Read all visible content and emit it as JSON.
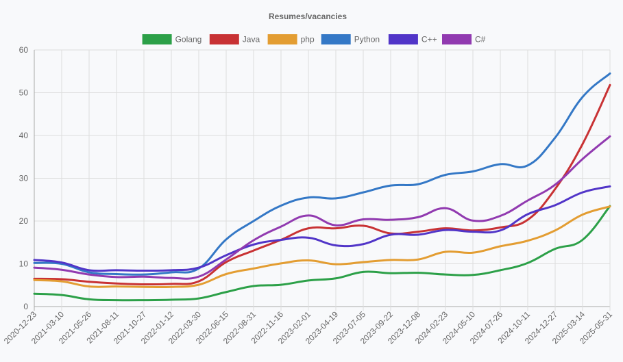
{
  "chart_data": {
    "type": "line",
    "title": "Resumes/vacancies",
    "xlabel": "",
    "ylabel": "",
    "ylim": [
      0,
      60
    ],
    "yticks": [
      "0",
      "10",
      "20",
      "30",
      "40",
      "50",
      "60"
    ],
    "grid": true,
    "legend_position": "top",
    "x": [
      "2020-12-23",
      "2021-03-10",
      "2021-05-26",
      "2021-08-11",
      "2021-10-27",
      "2022-01-12",
      "2022-03-30",
      "2022-06-15",
      "2022-08-31",
      "2022-11-16",
      "2023-02-01",
      "2023-04-19",
      "2023-07-05",
      "2023-09-22",
      "2023-12-08",
      "2024-02-23",
      "2024-05-10",
      "2024-07-26",
      "2024-10-11",
      "2024-12-27",
      "2025-03-14",
      "2025-05-31"
    ],
    "series": [
      {
        "name": "Golang",
        "color": "#2ca048",
        "values": [
          3.0,
          2.7,
          1.7,
          1.5,
          1.5,
          1.6,
          1.9,
          3.4,
          4.8,
          5.1,
          6.1,
          6.6,
          8.1,
          7.8,
          7.9,
          7.5,
          7.4,
          8.5,
          10.2,
          13.5,
          15.6,
          23.5
        ]
      },
      {
        "name": "Java",
        "color": "#c83234",
        "values": [
          6.5,
          6.4,
          5.8,
          5.4,
          5.2,
          5.3,
          5.9,
          10.4,
          13.1,
          15.6,
          18.3,
          18.3,
          18.9,
          17.1,
          17.5,
          18.3,
          17.8,
          18.5,
          20.3,
          27.5,
          38.0,
          51.8
        ]
      },
      {
        "name": "php",
        "color": "#e39d32",
        "values": [
          6.2,
          5.9,
          4.7,
          4.7,
          4.6,
          4.6,
          5.1,
          7.6,
          8.9,
          10.1,
          10.8,
          9.9,
          10.4,
          10.9,
          11.0,
          12.8,
          12.6,
          14.1,
          15.4,
          17.8,
          21.5,
          23.4
        ]
      },
      {
        "name": "Python",
        "color": "#3478c6",
        "values": [
          10.2,
          10.0,
          8.0,
          7.6,
          7.5,
          8.0,
          8.9,
          15.7,
          20.0,
          23.6,
          25.5,
          25.3,
          26.7,
          28.3,
          28.6,
          30.8,
          31.6,
          33.3,
          33.0,
          39.5,
          49.0,
          54.5
        ]
      },
      {
        "name": "C++",
        "color": "#5135c8",
        "values": [
          10.9,
          10.3,
          8.5,
          8.5,
          8.4,
          8.5,
          9.1,
          12.0,
          14.5,
          15.6,
          16.1,
          14.3,
          14.6,
          16.8,
          16.8,
          17.9,
          17.5,
          17.8,
          21.6,
          23.7,
          26.7,
          28.1
        ]
      },
      {
        "name": "C#",
        "color": "#913ab0",
        "values": [
          9.1,
          8.6,
          7.5,
          6.9,
          7.0,
          6.7,
          7.0,
          11.0,
          15.5,
          18.7,
          21.3,
          19.0,
          20.4,
          20.3,
          20.9,
          23.0,
          20.1,
          21.2,
          24.8,
          28.5,
          34.5,
          39.8
        ]
      }
    ]
  }
}
